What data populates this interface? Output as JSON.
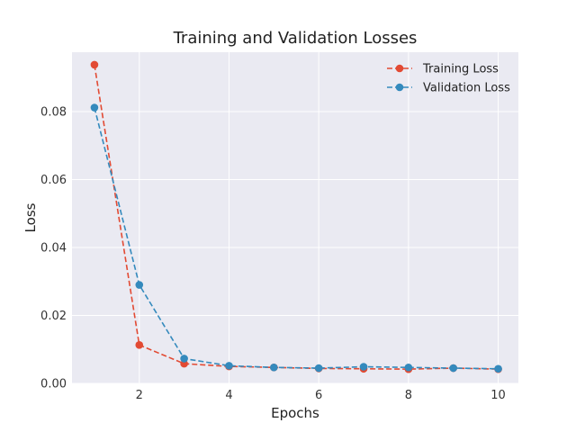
{
  "chart_data": {
    "type": "line",
    "title": "Training and Validation Losses",
    "xlabel": "Epochs",
    "ylabel": "Loss",
    "xlim": [
      0.5,
      10.45
    ],
    "ylim": [
      0,
      0.0975
    ],
    "xticks": [
      2,
      4,
      6,
      8,
      10
    ],
    "yticks": [
      0,
      0.02,
      0.04,
      0.06,
      0.08
    ],
    "xtick_labels": [
      "2",
      "4",
      "6",
      "8",
      "10"
    ],
    "ytick_labels": [
      "0.00",
      "0.02",
      "0.04",
      "0.06",
      "0.08"
    ],
    "grid": true,
    "legend_position": "top-right",
    "background_color": "#eaeaf2",
    "grid_color": "#ffffff",
    "x": [
      1,
      2,
      3,
      4,
      5,
      6,
      7,
      8,
      9,
      10
    ],
    "series": [
      {
        "name": "Training Loss",
        "color": "#e24a33",
        "line_style": "dashed",
        "marker": "circle",
        "values": [
          0.0938,
          0.0113,
          0.0058,
          0.005,
          0.0047,
          0.0044,
          0.0043,
          0.0042,
          0.0045,
          0.0042
        ]
      },
      {
        "name": "Validation Loss",
        "color": "#348abd",
        "line_style": "dashed",
        "marker": "circle",
        "values": [
          0.0812,
          0.029,
          0.0073,
          0.0052,
          0.0047,
          0.0045,
          0.0049,
          0.0047,
          0.0045,
          0.0043
        ]
      }
    ]
  }
}
